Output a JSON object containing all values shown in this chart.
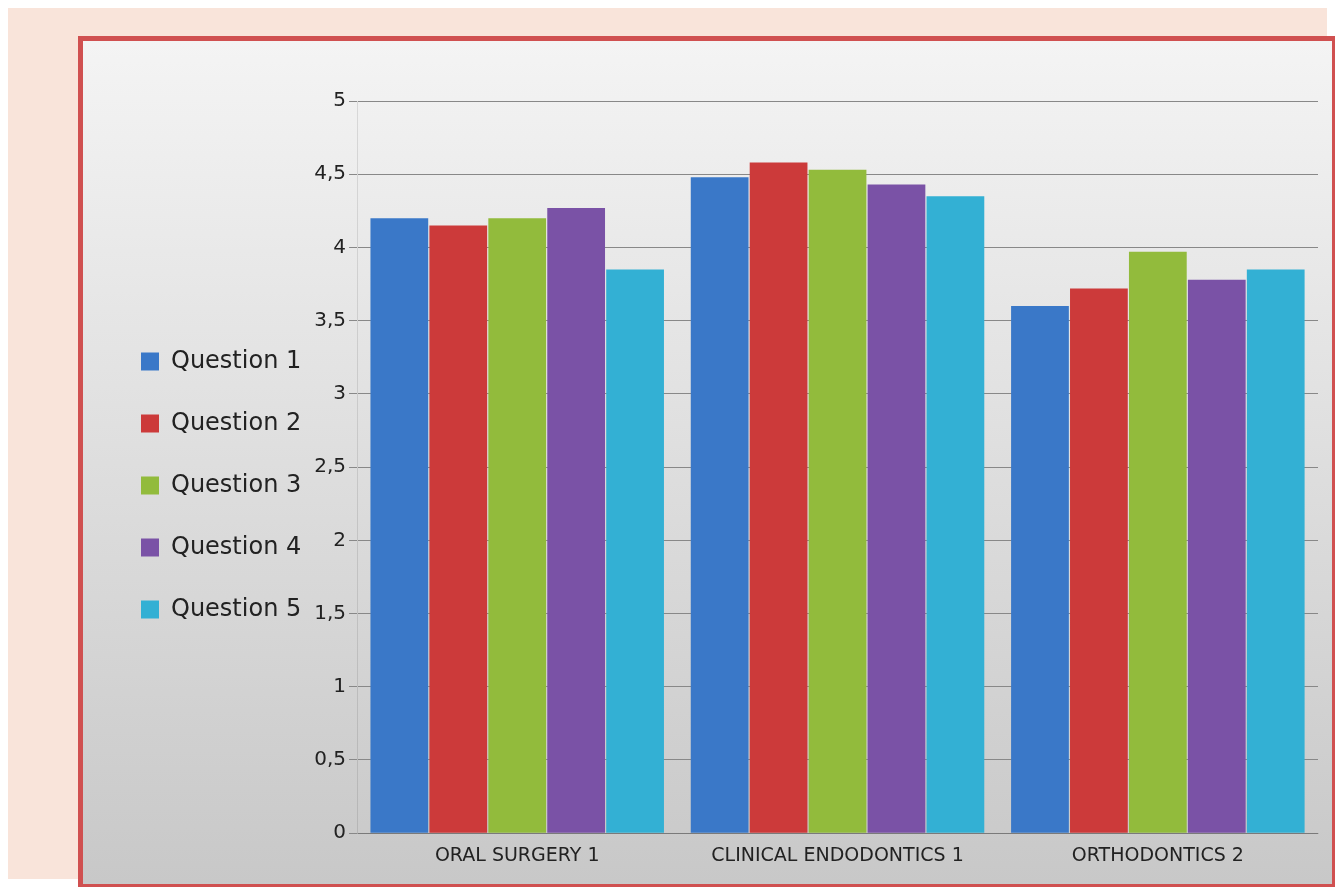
{
  "chart_data": {
    "type": "bar",
    "categories": [
      "ORAL SURGERY 1",
      "CLINICAL ENDODONTICS 1",
      "ORTHODONTICS 2"
    ],
    "series": [
      {
        "name": "Question 1",
        "color": "#3a78c8",
        "values": [
          4.2,
          4.48,
          3.6
        ]
      },
      {
        "name": "Question 2",
        "color": "#cc3a3a",
        "values": [
          4.15,
          4.58,
          3.72
        ]
      },
      {
        "name": "Question 3",
        "color": "#92bb3c",
        "values": [
          4.2,
          4.53,
          3.97
        ]
      },
      {
        "name": "Question 4",
        "color": "#7a52a6",
        "values": [
          4.27,
          4.43,
          3.78
        ]
      },
      {
        "name": "Question 5",
        "color": "#33b0d4",
        "values": [
          3.85,
          4.35,
          3.85
        ]
      }
    ],
    "ylim": [
      0,
      5
    ],
    "yticks": [
      0,
      {
        "value": 0.5,
        "label": "0,5"
      },
      1,
      {
        "value": 1.5,
        "label": "1,5"
      },
      2,
      {
        "value": 2.5,
        "label": "2,5"
      },
      3,
      {
        "value": 3.5,
        "label": "3,5"
      },
      4,
      {
        "value": 4.5,
        "label": "4,5"
      },
      5
    ],
    "grid": "y",
    "legend": "left"
  }
}
